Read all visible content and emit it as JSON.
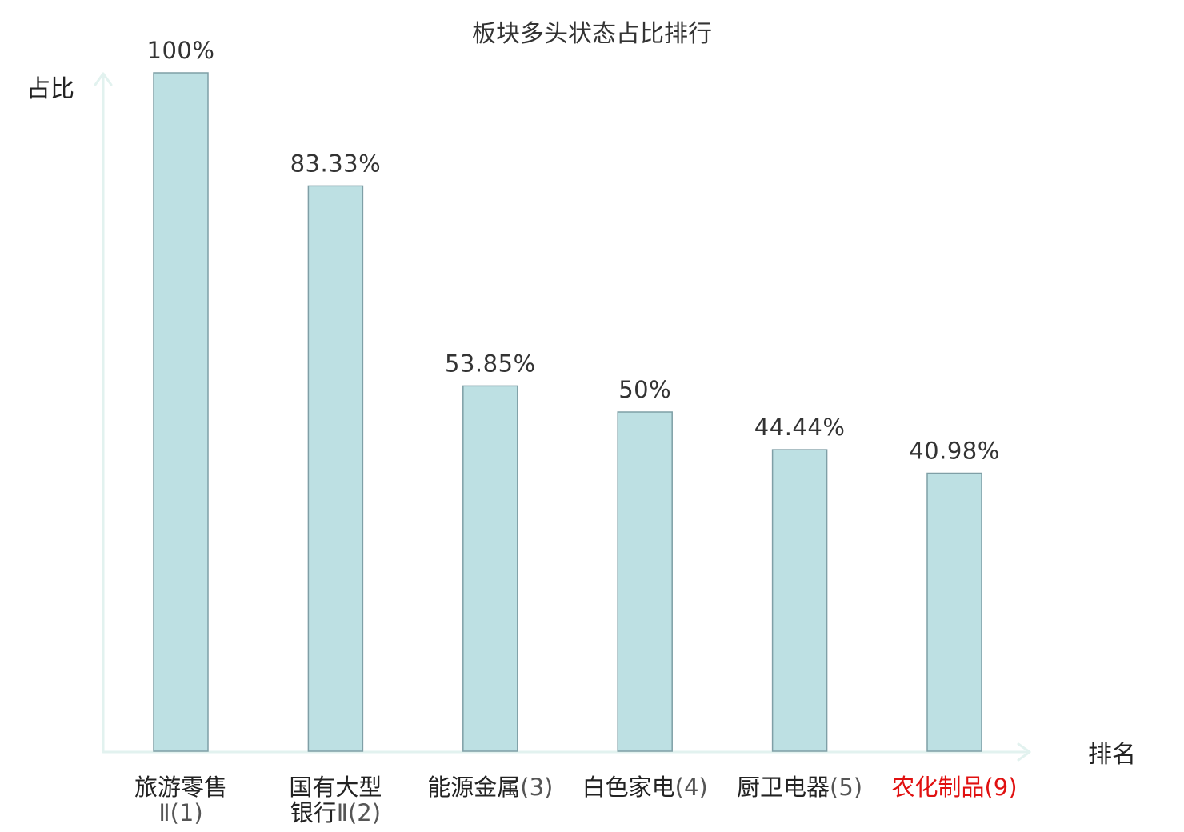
{
  "chart_data": {
    "type": "bar",
    "title": "板块多头状态占比排行",
    "ylabel": "占比",
    "xlabel": "排名",
    "ylim": [
      0,
      100
    ],
    "grid": false,
    "categories": [
      {
        "name_lines": [
          "旅游零售",
          "Ⅱ(1)"
        ],
        "highlight": false
      },
      {
        "name_lines": [
          "国有大型",
          "银行Ⅱ(2)"
        ],
        "highlight": false
      },
      {
        "name_lines": [
          "能源金属(3)"
        ],
        "highlight": false
      },
      {
        "name_lines": [
          "白色家电(4)"
        ],
        "highlight": false
      },
      {
        "name_lines": [
          "厨卫电器(5)"
        ],
        "highlight": false
      },
      {
        "name_lines": [
          "农化制品(9)"
        ],
        "highlight": true
      }
    ],
    "values": [
      100,
      83.33,
      53.85,
      50,
      44.44,
      40.98
    ],
    "value_labels": [
      "100%",
      "83.33%",
      "53.85%",
      "50%",
      "44.44%",
      "40.98%"
    ]
  },
  "colors": {
    "bar_fill": "#bde0e3",
    "bar_stroke": "#7f9fa6",
    "axis": "#e2f2ef",
    "highlight": "#e01010"
  }
}
